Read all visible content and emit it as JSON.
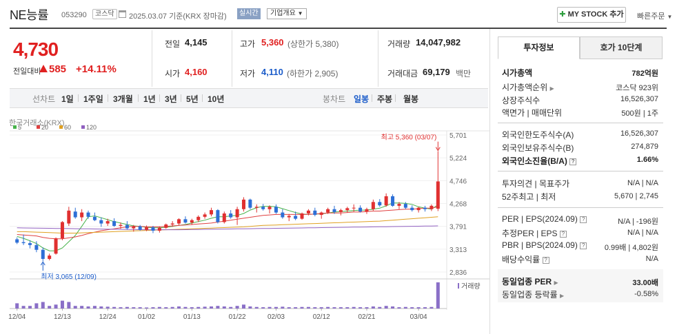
{
  "header": {
    "stock_name": "NE능률",
    "stock_code": "053290",
    "market": "코스닥",
    "base_date": "2025.03.07  기준(KRX  장마감)",
    "live_btn": "실시간",
    "overview_btn": "기업개요",
    "mystock_btn": "MY STOCK 추가",
    "quick_order": "빠른주문"
  },
  "price": {
    "current": "4,730",
    "change_label": "전일대비",
    "change_amount": "585",
    "change_rate": "+14.11%",
    "prev_close_label": "전일",
    "prev_close": "4,145",
    "open_label": "시가",
    "open": "4,160",
    "high_label": "고가",
    "high": "5,360",
    "upper_limit": "(상한가 5,380)",
    "low_label": "저가",
    "low": "4,110",
    "lower_limit": "(하한가 2,905)",
    "volume_label": "거래량",
    "volume": "14,047,982",
    "amount_label": "거래대금",
    "amount": "69,179",
    "amount_unit": "백만"
  },
  "period_tabs": {
    "line_label": "선차트",
    "line": [
      "1일",
      "1주일",
      "3개월",
      "1년",
      "3년",
      "5년",
      "10년"
    ],
    "candle_label": "봉차트",
    "candle": [
      "일봉",
      "주봉",
      "월봉"
    ],
    "active_candle": "일봉"
  },
  "chart_data": {
    "type": "candlestick",
    "source_label": "한국거래소(KRX)",
    "legend": [
      {
        "name": "5",
        "color": "#47b24a"
      },
      {
        "name": "20",
        "color": "#e04040"
      },
      {
        "name": "60",
        "color": "#e0a020"
      },
      {
        "name": "120",
        "color": "#9060c0"
      }
    ],
    "y_ticks": [
      "5,701",
      "5,224",
      "4,746",
      "4,268",
      "3,791",
      "3,313",
      "2,836"
    ],
    "ylim": [
      2836,
      5701
    ],
    "x_ticks": [
      "12/04",
      "12/13",
      "12/24",
      "01/02",
      "01/13",
      "01/22",
      "02/03",
      "02/12",
      "02/21",
      "03/04"
    ],
    "max_label": "최고 5,360 (03/07)",
    "min_label": "최저 3,065 (12/09)",
    "volume_label": "거래량",
    "up_color": "#e03030",
    "down_color": "#2d6fd6",
    "candles": [
      [
        3520,
        3560,
        3420,
        3450
      ],
      [
        3460,
        3620,
        3400,
        3440
      ],
      [
        3440,
        3500,
        3330,
        3400
      ],
      [
        3400,
        3480,
        3250,
        3300
      ],
      [
        3300,
        3350,
        3065,
        3110
      ],
      [
        3110,
        3220,
        3080,
        3180
      ],
      [
        3220,
        3560,
        3200,
        3540
      ],
      [
        3540,
        3900,
        3500,
        3880
      ],
      [
        3850,
        4200,
        3800,
        4120
      ],
      [
        4100,
        4180,
        3950,
        3980
      ],
      [
        3980,
        4150,
        3900,
        4080
      ],
      [
        4080,
        4120,
        3950,
        3990
      ],
      [
        3990,
        4080,
        3900,
        3920
      ],
      [
        3920,
        3980,
        3780,
        3850
      ],
      [
        3850,
        3950,
        3800,
        3900
      ],
      [
        3900,
        3960,
        3780,
        3800
      ],
      [
        3800,
        3870,
        3740,
        3820
      ],
      [
        3820,
        3900,
        3720,
        3750
      ],
      [
        3750,
        3820,
        3680,
        3790
      ],
      [
        3790,
        3820,
        3700,
        3720
      ],
      [
        3720,
        3810,
        3690,
        3770
      ],
      [
        3770,
        3800,
        3650,
        3700
      ],
      [
        3700,
        3790,
        3660,
        3760
      ],
      [
        3760,
        3850,
        3740,
        3830
      ],
      [
        3830,
        3900,
        3780,
        3850
      ],
      [
        3850,
        3960,
        3820,
        3940
      ],
      [
        3940,
        4000,
        3850,
        3870
      ],
      [
        3870,
        3950,
        3820,
        3920
      ],
      [
        3920,
        4020,
        3880,
        3990
      ],
      [
        3990,
        4080,
        3950,
        4040
      ],
      [
        4040,
        4180,
        4000,
        4130
      ],
      [
        4130,
        4150,
        3850,
        3880
      ],
      [
        3880,
        4100,
        3850,
        4060
      ],
      [
        4060,
        4130,
        3950,
        3980
      ],
      [
        3980,
        4200,
        3820,
        4150
      ],
      [
        4150,
        4400,
        4100,
        4350
      ],
      [
        4350,
        4370,
        4150,
        4180
      ],
      [
        4180,
        4250,
        4080,
        4200
      ],
      [
        4200,
        4260,
        4120,
        4150
      ],
      [
        4150,
        4230,
        4060,
        4200
      ],
      [
        4200,
        4250,
        4050,
        4080
      ],
      [
        4080,
        4150,
        3950,
        3980
      ],
      [
        3980,
        4050,
        3900,
        4010
      ],
      [
        4010,
        4100,
        3920,
        3950
      ],
      [
        3950,
        4080,
        3930,
        4060
      ],
      [
        4060,
        4150,
        4020,
        4120
      ],
      [
        4120,
        4180,
        4000,
        4030
      ],
      [
        4030,
        4100,
        3950,
        4080
      ],
      [
        4080,
        4180,
        4050,
        4150
      ],
      [
        4150,
        4220,
        4050,
        4090
      ],
      [
        4090,
        4160,
        4020,
        4130
      ],
      [
        4130,
        4200,
        4080,
        4170
      ],
      [
        4170,
        4250,
        4100,
        4180
      ],
      [
        4180,
        4230,
        4080,
        4100
      ],
      [
        4100,
        4180,
        4050,
        4150
      ],
      [
        4150,
        4350,
        4120,
        4300
      ],
      [
        4300,
        4360,
        4200,
        4230
      ],
      [
        4230,
        4480,
        4200,
        4420
      ],
      [
        4420,
        4460,
        4200,
        4220
      ],
      [
        4220,
        4300,
        4150,
        4260
      ],
      [
        4260,
        4300,
        4150,
        4180
      ],
      [
        4180,
        4230,
        4100,
        4130
      ],
      [
        4130,
        4200,
        4080,
        4180
      ],
      [
        4180,
        4220,
        4100,
        4150
      ],
      [
        4150,
        4250,
        4110,
        4220
      ],
      [
        4160,
        5360,
        4110,
        4730
      ]
    ],
    "volumes": [
      0.2,
      0.1,
      0.1,
      0.2,
      0.25,
      0.1,
      0.15,
      0.3,
      0.25,
      0.1,
      0.1,
      0.08,
      0.1,
      0.08,
      0.07,
      0.06,
      0.05,
      0.06,
      0.05,
      0.05,
      0.04,
      0.05,
      0.06,
      0.05,
      0.06,
      0.08,
      0.06,
      0.05,
      0.06,
      0.07,
      0.08,
      0.1,
      0.08,
      0.06,
      0.1,
      0.15,
      0.08,
      0.06,
      0.05,
      0.06,
      0.06,
      0.07,
      0.05,
      0.05,
      0.06,
      0.06,
      0.05,
      0.05,
      0.06,
      0.05,
      0.05,
      0.05,
      0.06,
      0.05,
      0.05,
      0.08,
      0.06,
      0.1,
      0.08,
      0.05,
      0.06,
      0.05,
      0.05,
      0.05,
      0.06,
      1.0
    ],
    "ma5": [
      3580,
      3540,
      3490,
      3430,
      3340,
      3280,
      3280,
      3340,
      3470,
      3600,
      3790,
      3990,
      4010,
      3970,
      3930,
      3890,
      3860,
      3830,
      3800,
      3790,
      3770,
      3760,
      3760,
      3770,
      3790,
      3810,
      3830,
      3860,
      3890,
      3920,
      3960,
      3990,
      3990,
      4010,
      4020,
      4060,
      4130,
      4180,
      4210,
      4210,
      4200,
      4160,
      4120,
      4080,
      4050,
      4040,
      4050,
      4050,
      4070,
      4090,
      4100,
      4110,
      4120,
      4130,
      4130,
      4150,
      4170,
      4220,
      4280,
      4280,
      4270,
      4250,
      4200,
      4170,
      4150,
      4240
    ],
    "ma20": [
      3620,
      3610,
      3600,
      3590,
      3560,
      3540,
      3530,
      3530,
      3550,
      3570,
      3600,
      3640,
      3670,
      3700,
      3720,
      3740,
      3760,
      3780,
      3790,
      3790,
      3780,
      3780,
      3780,
      3790,
      3800,
      3810,
      3820,
      3830,
      3840,
      3850,
      3860,
      3880,
      3900,
      3920,
      3940,
      3960,
      3980,
      4000,
      4020,
      4030,
      4040,
      4040,
      4040,
      4040,
      4040,
      4040,
      4050,
      4060,
      4070,
      4070,
      4070,
      4080,
      4090,
      4090,
      4100,
      4110,
      4110,
      4120,
      4130,
      4140,
      4150,
      4150,
      4160,
      4170,
      4170,
      4200
    ],
    "ma60": [
      3680,
      3680,
      3675,
      3670,
      3665,
      3660,
      3655,
      3650,
      3650,
      3650,
      3655,
      3660,
      3665,
      3670,
      3675,
      3680,
      3685,
      3690,
      3695,
      3700,
      3705,
      3710,
      3715,
      3720,
      3725,
      3730,
      3735,
      3740,
      3745,
      3750,
      3755,
      3760,
      3765,
      3770,
      3775,
      3780,
      3790,
      3800,
      3810,
      3815,
      3820,
      3825,
      3830,
      3835,
      3840,
      3845,
      3850,
      3855,
      3860,
      3865,
      3870,
      3875,
      3880,
      3885,
      3890,
      3895,
      3900,
      3910,
      3920,
      3930,
      3940,
      3950,
      3960,
      3970,
      3980,
      3990
    ],
    "ma120": [
      3760,
      3758,
      3756,
      3754,
      3752,
      3750,
      3748,
      3746,
      3744,
      3742,
      3740,
      3738,
      3736,
      3734,
      3732,
      3730,
      3728,
      3726,
      3724,
      3722,
      3720,
      3720,
      3720,
      3720,
      3720,
      3720,
      3722,
      3724,
      3726,
      3728,
      3730,
      3732,
      3734,
      3736,
      3738,
      3740,
      3742,
      3744,
      3746,
      3748,
      3750,
      3752,
      3754,
      3756,
      3758,
      3760,
      3762,
      3764,
      3766,
      3768,
      3770,
      3772,
      3774,
      3776,
      3778,
      3780,
      3782,
      3784,
      3786,
      3788,
      3790,
      3792,
      3794,
      3796,
      3798,
      3800
    ]
  },
  "right_panel": {
    "tab_invest": "투자정보",
    "tab_hoga": "호가 10단계",
    "market_cap_label": "시가총액",
    "market_cap": "782억원",
    "cap_rank_label": "시가총액순위",
    "cap_rank": "코스닥 923위",
    "shares_label": "상장주식수",
    "shares": "16,526,307",
    "par_label": "액면가 | 매매단위",
    "par": "500원 | 1주",
    "foreign_limit_label": "외국인한도주식수(A)",
    "foreign_limit": "16,526,307",
    "foreign_hold_label": "외국인보유주식수(B)",
    "foreign_hold": "274,879",
    "foreign_ratio_label": "외국인소진율(B/A)",
    "foreign_ratio": "1.66%",
    "opinion_label": "투자의견 | 목표주가",
    "opinion": "N/A | N/A",
    "week52_label": "52주최고 | 최저",
    "week52": "5,670 | 2,745",
    "per_eps_label": "PER | EPS(2024.09)",
    "per_eps": "N/A | -196원",
    "est_label": "추정PER | EPS",
    "est": "N/A | N/A",
    "pbr_bps_label": "PBR | BPS(2024.09)",
    "pbr_bps": "0.99배 | 4,802원",
    "div_label": "배당수익률",
    "div": "N/A",
    "ind_per_label": "동일업종 PER",
    "ind_per": "33.00배",
    "ind_rate_label": "동일업종 등락률",
    "ind_rate": "-0.58%"
  }
}
